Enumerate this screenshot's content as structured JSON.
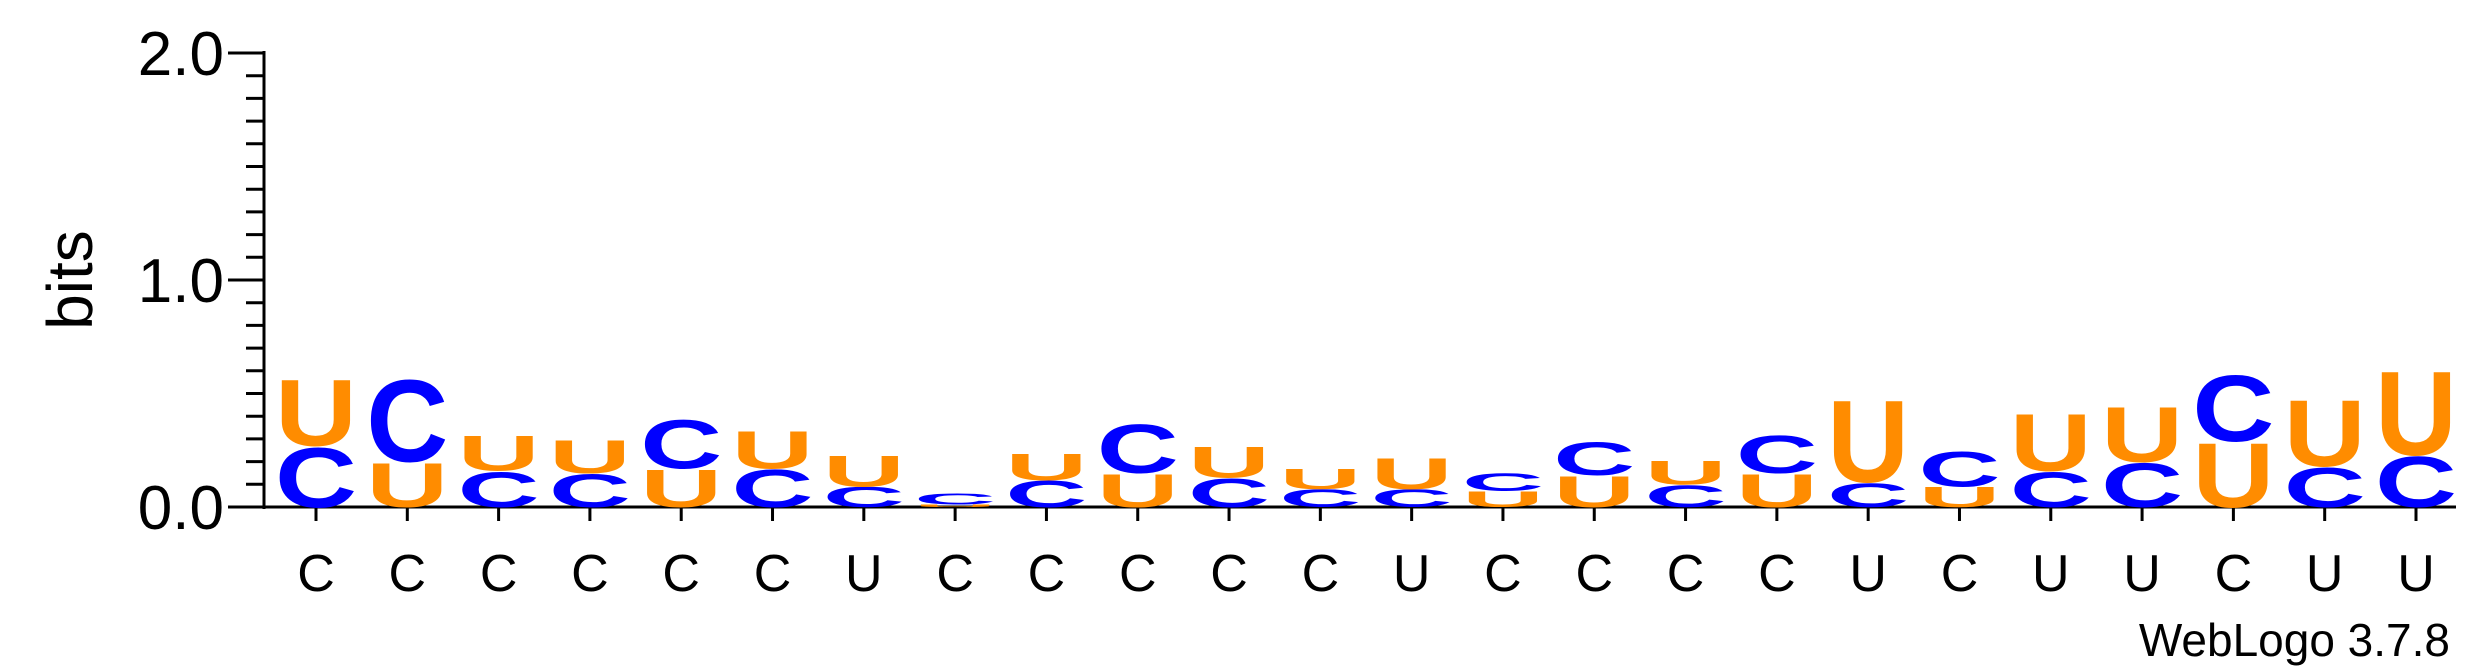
{
  "chart_data": {
    "type": "logo",
    "ylabel": "bits",
    "footer": "WebLogo 3.7.8",
    "categories": [
      "C",
      "C",
      "C",
      "C",
      "C",
      "C",
      "U",
      "C",
      "C",
      "C",
      "C",
      "C",
      "U",
      "C",
      "C",
      "C",
      "C",
      "U",
      "C",
      "U",
      "U",
      "C",
      "U",
      "U"
    ],
    "series": [
      {
        "name": "C",
        "color": "#0000ff",
        "values": [
          0.27,
          0.37,
          0.16,
          0.15,
          0.22,
          0.17,
          0.09,
          0.05,
          0.12,
          0.22,
          0.13,
          0.08,
          0.08,
          0.08,
          0.15,
          0.1,
          0.17,
          0.11,
          0.16,
          0.16,
          0.2,
          0.3,
          0.18,
          0.23
        ]
      },
      {
        "name": "U",
        "color": "#ff8c00",
        "values": [
          0.3,
          0.2,
          0.16,
          0.15,
          0.17,
          0.17,
          0.14,
          0.01,
          0.12,
          0.15,
          0.14,
          0.09,
          0.14,
          0.07,
          0.14,
          0.11,
          0.15,
          0.37,
          0.09,
          0.26,
          0.25,
          0.29,
          0.3,
          0.38
        ]
      }
    ],
    "ylim": [
      0,
      2
    ],
    "yticks": [
      {
        "value": 0,
        "label": "0.0"
      },
      {
        "value": 1,
        "label": "1.0"
      },
      {
        "value": 2,
        "label": "2.0"
      }
    ],
    "yminorticks": [
      0.1,
      0.2,
      0.3,
      0.4,
      0.5,
      0.6,
      0.7,
      0.8,
      0.9,
      1.1,
      1.2,
      1.3,
      1.4,
      1.5,
      1.6,
      1.7,
      1.8,
      1.9
    ]
  }
}
